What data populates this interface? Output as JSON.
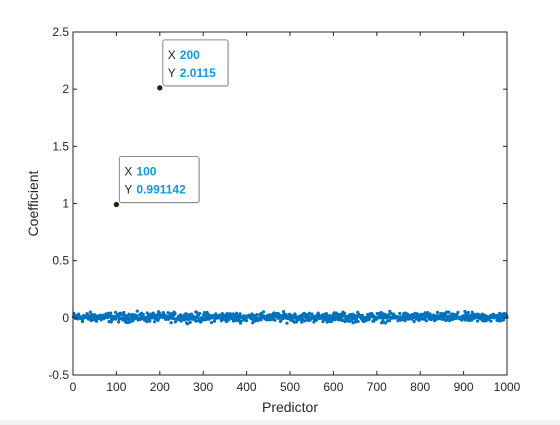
{
  "chart_data": {
    "type": "scatter",
    "title": "",
    "xlabel": "Predictor",
    "ylabel": "Coefficient",
    "xlim": [
      0,
      1000
    ],
    "ylim": [
      -0.5,
      2.5
    ],
    "xticks": [
      0,
      100,
      200,
      300,
      400,
      500,
      600,
      700,
      800,
      900,
      1000
    ],
    "yticks": [
      -0.5,
      0,
      0.5,
      1,
      1.5,
      2,
      2.5
    ],
    "x_tick_labels": [
      "0",
      "100",
      "200",
      "300",
      "400",
      "500",
      "600",
      "700",
      "800",
      "900",
      "1000"
    ],
    "y_tick_labels": [
      "-0.5",
      "0",
      "0.5",
      "1",
      "1.5",
      "2",
      "2.5"
    ],
    "grid": false,
    "marker_color": "#0072bd",
    "series": [
      {
        "description": "coefficients for predictors 1-1000; all lie near 0 (roughly -0.05 to 0.07) except predictors 100 and 200",
        "x_range": [
          1,
          1000
        ],
        "y_typical_range": [
          -0.05,
          0.07
        ],
        "notable_points": [
          {
            "x": 100,
            "y": 0.991142
          },
          {
            "x": 200,
            "y": 2.0115
          }
        ]
      }
    ],
    "datatips": [
      {
        "x_key": "X",
        "x_value": "100",
        "y_key": "Y",
        "y_value": "0.991142",
        "x": 100,
        "y": 0.991142
      },
      {
        "x_key": "X",
        "x_value": "200",
        "y_key": "Y",
        "y_value": "2.0115",
        "x": 200,
        "y": 2.0115
      }
    ]
  }
}
